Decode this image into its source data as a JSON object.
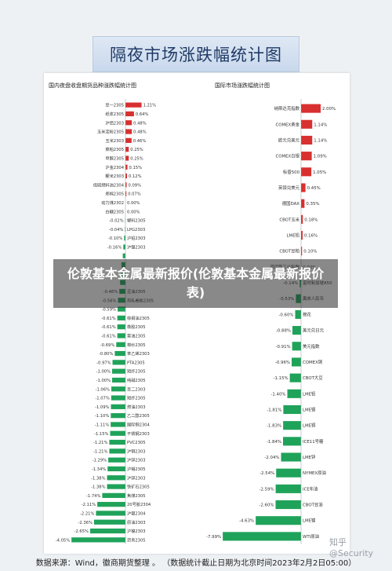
{
  "banner_title": "隔夜市场涨跌幅统计图",
  "overlay_title": "伦敦基本金属最新报价(伦敦基本金属最新报价表)",
  "watermark": "知乎 @Security",
  "footer": "数据来源：Wind，徽商期货整理 。 （数据统计截止日期为北京时间2023年2月2日05:00）",
  "colors": {
    "positive": "#d8302f",
    "negative": "#1fa35a"
  },
  "chart_data": [
    {
      "type": "bar",
      "orientation": "horizontal",
      "title": "国内夜盘收盘期货品种涨跌幅统计图",
      "categories": [
        "豆一2305",
        "纸浆2305",
        "沪铝2303",
        "玉米淀粉2305",
        "玉米2303",
        "菜粕2305",
        "甲醇2305",
        "沪金2304",
        "粳米2303",
        "低硫燃料油2304",
        "郑棉2305",
        "动力煤2302",
        "白糖2305",
        "塑料2305",
        "LPG2303",
        "沪铅2303",
        "沪镍2303",
        "",
        "",
        "",
        "",
        "豆油2305",
        "热轧卷板2305",
        "",
        "棕榈油2305",
        "橡胶2305",
        "菜油2305",
        "棉纱2305",
        "苯乙烯2303",
        "PTA2305",
        "短纤2305",
        "纯碱2305",
        "豆二2303",
        "短纤2305",
        "燃油2303",
        "乙二醇2305",
        "国际铜2304",
        "不锈钢2303",
        "PVC2305",
        "沪铜2303",
        "沪锌2303",
        "沪锡2305",
        "沪锌2303",
        "铁矿石2305",
        "焦煤2305",
        "20号胶2304",
        "沪银2304",
        "原油2303",
        "沪镍2303",
        "沥青2305"
      ],
      "values": [
        1.21,
        0.64,
        0.48,
        0.48,
        0.46,
        0.25,
        0.25,
        0.15,
        0.12,
        0.09,
        0.07,
        0.0,
        0.0,
        -0.02,
        -0.04,
        -0.1,
        -0.16,
        -0.2,
        -0.3,
        -0.35,
        -0.4,
        -0.46,
        -0.56,
        -0.59,
        -0.61,
        -0.61,
        -0.61,
        -0.69,
        -0.8,
        -0.97,
        -1.0,
        -1.0,
        -1.06,
        -1.07,
        -1.09,
        -1.1,
        -1.11,
        -1.15,
        -1.21,
        -1.21,
        -1.29,
        -1.34,
        -1.38,
        -1.38,
        -1.74,
        -2.11,
        -2.21,
        -2.36,
        -2.65,
        -4.05
      ],
      "labels": [
        "1.21%",
        "0.64%",
        "0.48%",
        "0.48%",
        "0.46%",
        "0.25%",
        "0.25%",
        "0.15%",
        "0.12%",
        "0.09%",
        "0.07%",
        "0.00%",
        "0.00%",
        "-0.02%",
        "-0.04%",
        "-0.10%",
        "-0.16%",
        "",
        "",
        "",
        "",
        "-0.46%",
        "-0.56%",
        "-0.59%",
        "-0.61%",
        "-0.61%",
        "-0.61%",
        "-0.69%",
        "-0.80%",
        "-0.97%",
        "-1.00%",
        "-1.00%",
        "-1.06%",
        "-1.07%",
        "-1.09%",
        "-1.10%",
        "-1.11%",
        "-1.15%",
        "-1.21%",
        "-1.21%",
        "-1.29%",
        "-1.34%",
        "-1.38%",
        "-1.38%",
        "-1.74%",
        "-2.11%",
        "-2.21%",
        "-2.36%",
        "-2.65%",
        "-4.05%"
      ],
      "xlim": [
        -4.05,
        1.21
      ]
    },
    {
      "type": "bar",
      "orientation": "horizontal",
      "title": "国际市场涨跌幅统计图",
      "categories": [
        "纳斯达克指数",
        "COMEX黄金",
        "欧元兑美元",
        "COMEX白银",
        "标普500",
        "英镑兑美元",
        "德国DAX",
        "CBOT玉米",
        "LME铅",
        "CBOT豆粕",
        "道琼斯工业指数",
        "富时新加坡A50",
        "离岸人民币",
        "棉花",
        "美元兑日元",
        "美元指数",
        "COMEX铜",
        "CBOT大豆",
        "LME铝",
        "LME锡",
        "LME铜",
        "ICE11号糖",
        "LME锌",
        "NYMEX原油",
        "ICE布油",
        "CBOT豆油",
        "LME镍",
        "WTI原油"
      ],
      "values": [
        2.0,
        1.14,
        1.14,
        1.09,
        1.05,
        0.45,
        0.35,
        0.18,
        0.16,
        0.1,
        0.02,
        -0.14,
        -0.53,
        -0.6,
        -0.88,
        -0.91,
        -0.96,
        -1.15,
        -1.4,
        -1.81,
        -1.83,
        -1.84,
        -2.04,
        -2.54,
        -2.59,
        -2.6,
        -4.63,
        -7.99
      ],
      "labels": [
        "2.00%",
        "1.14%",
        "1.14%",
        "1.09%",
        "1.05%",
        "0.45%",
        "0.35%",
        "0.18%",
        "0.16%",
        "0.10%",
        "0.02%",
        "-0.14%",
        "-0.53%",
        "-0.60%",
        "-0.88%",
        "-0.91%",
        "-0.96%",
        "-1.15%",
        "-1.40%",
        "-1.81%",
        "-1.83%",
        "-1.84%",
        "-2.04%",
        "-2.54%",
        "-2.59%",
        "-2.60%",
        "-4.63%",
        "-7.99%"
      ],
      "xlim": [
        -7.99,
        2.0
      ]
    }
  ]
}
